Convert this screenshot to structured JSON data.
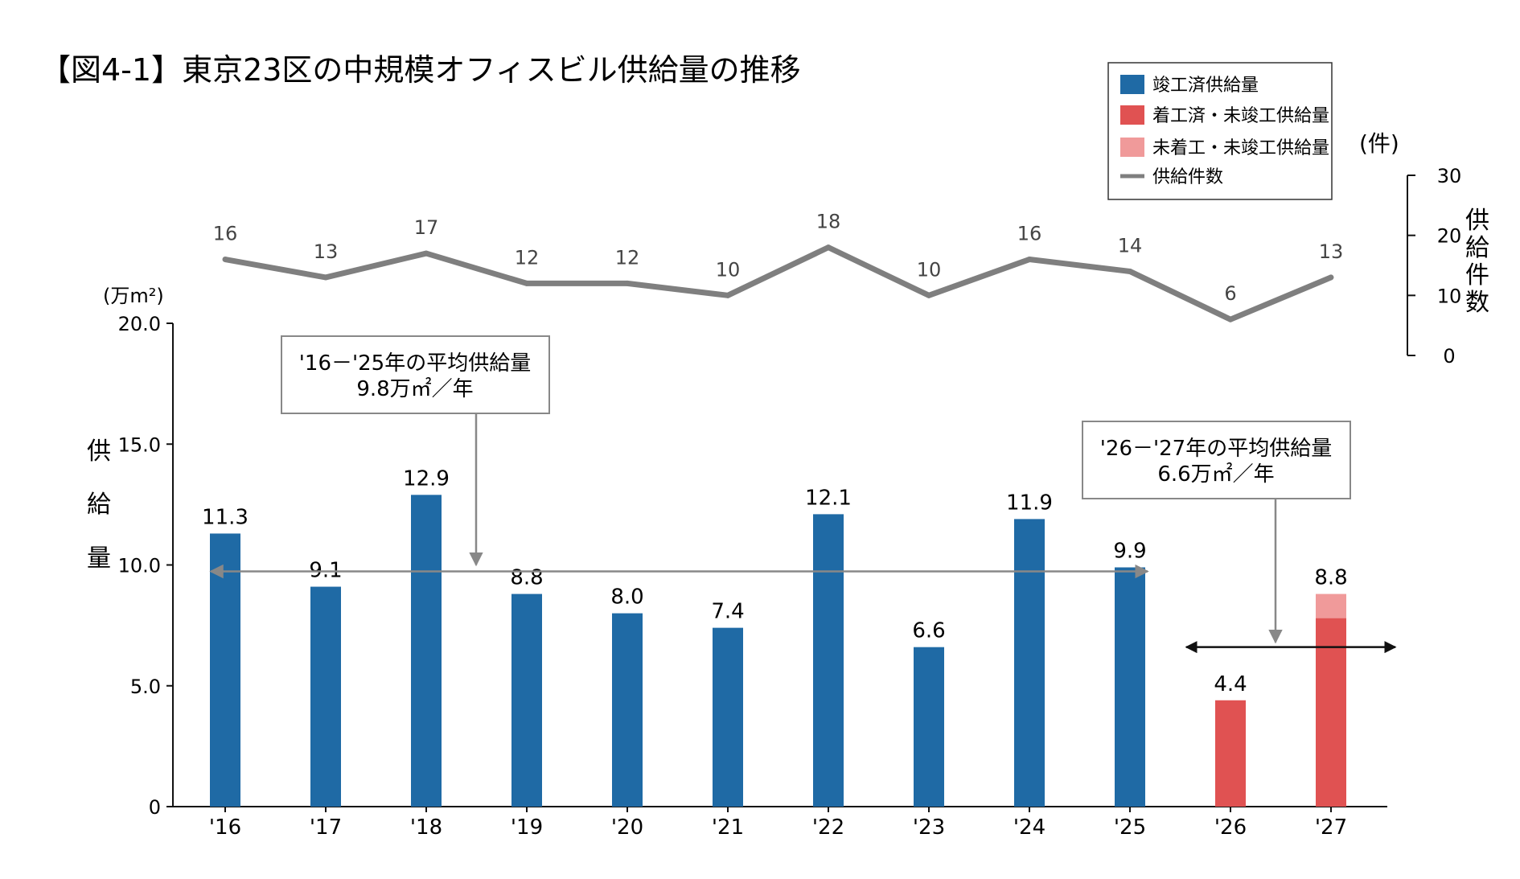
{
  "chart_data": {
    "type": "bar",
    "title": "【図4-1】東京23区の中規模オフィスビル供給量の推移",
    "categories": [
      "'16",
      "'17",
      "'18",
      "'19",
      "'20",
      "'21",
      "'22",
      "'23",
      "'24",
      "'25",
      "'26",
      "'27"
    ],
    "series": [
      {
        "name": "竣工済供給量",
        "color": "#1f6aa5",
        "values": [
          11.3,
          9.1,
          12.9,
          8.8,
          8.0,
          7.4,
          12.1,
          6.6,
          11.9,
          9.9,
          0,
          0
        ]
      },
      {
        "name": "着工済・未竣工供給量",
        "color": "#e05252",
        "values": [
          0,
          0,
          0,
          0,
          0,
          0,
          0,
          0,
          0,
          0,
          4.4,
          7.8
        ]
      },
      {
        "name": "未着工・未竣工供給量",
        "color": "#f09a9a",
        "values": [
          0,
          0,
          0,
          0,
          0,
          0,
          0,
          0,
          0,
          0,
          0,
          1.0
        ]
      }
    ],
    "bar_labels": [
      "11.3",
      "9.1",
      "12.9",
      "8.8",
      "8.0",
      "7.4",
      "12.1",
      "6.6",
      "11.9",
      "9.9",
      "4.4",
      "8.8"
    ],
    "line_series": {
      "name": "供給件数",
      "color": "#7f7f7f",
      "values": [
        16,
        13,
        17,
        12,
        12,
        10,
        18,
        10,
        16,
        14,
        6,
        13
      ]
    },
    "ylabel": "供給量",
    "ylabel_chars": [
      "供",
      "給",
      "量"
    ],
    "yunit": "(万m²)",
    "ylim": [
      0,
      20
    ],
    "yticks": [
      "0",
      "5.0",
      "10.0",
      "15.0",
      "20.0"
    ],
    "y2label": "供給件数",
    "y2label_chars": [
      "供",
      "給",
      "件",
      "数"
    ],
    "y2unit": "(件)",
    "y2lim": [
      0,
      30
    ],
    "y2ticks": [
      "0",
      "10",
      "20",
      "30"
    ],
    "legend": {
      "position": "top-right",
      "items": [
        {
          "label": "竣工済供給量",
          "color": "#1f6aa5",
          "kind": "box"
        },
        {
          "label": "着工済・未竣工供給量",
          "color": "#e05252",
          "kind": "box"
        },
        {
          "label": "未着工・未竣工供給量",
          "color": "#f09a9a",
          "kind": "box"
        },
        {
          "label": "供給件数",
          "color": "#7f7f7f",
          "kind": "line"
        }
      ]
    },
    "annotations": [
      {
        "line1": "'16－'25年の平均供給量",
        "line2": "9.8万㎡／年",
        "value": 9.8,
        "span": [
          "'16",
          "'25"
        ]
      },
      {
        "line1": "'26－'27年の平均供給量",
        "line2": "6.6万㎡／年",
        "value": 6.6,
        "span": [
          "'26",
          "'27"
        ]
      }
    ]
  }
}
